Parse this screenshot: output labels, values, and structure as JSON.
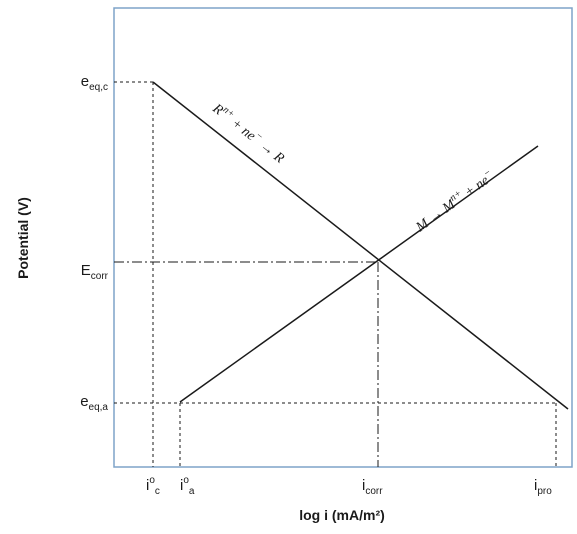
{
  "diagram": {
    "type": "evans-diagram",
    "axes": {
      "ylabel": "Potential (V)",
      "xlabel": "log i (mA/m²)",
      "y_ticks": [
        {
          "base": "e",
          "sub": "eq,c"
        },
        {
          "base": "E",
          "sub": "corr"
        },
        {
          "base": "e",
          "sub": "eq,a"
        }
      ],
      "x_ticks": [
        {
          "base": "i",
          "sup": "o",
          "sub": "c"
        },
        {
          "base": "i",
          "sup": "o",
          "sub": "a"
        },
        {
          "base": "i",
          "sub": "corr"
        },
        {
          "base": "i",
          "sub": "pro"
        }
      ]
    },
    "reactions": {
      "cathodic": {
        "lhs": "R",
        "lhs_sup": "n+",
        "plus": " + ne",
        "plus_sup": "−",
        "arrow": " → R"
      },
      "anodic": {
        "lhs": "M → M",
        "lhs_sup": "n+",
        "plus": " + ne",
        "plus_sup": "−"
      }
    },
    "colors": {
      "frame": "#7ea3c8",
      "lines": "#1a1a1a"
    }
  }
}
